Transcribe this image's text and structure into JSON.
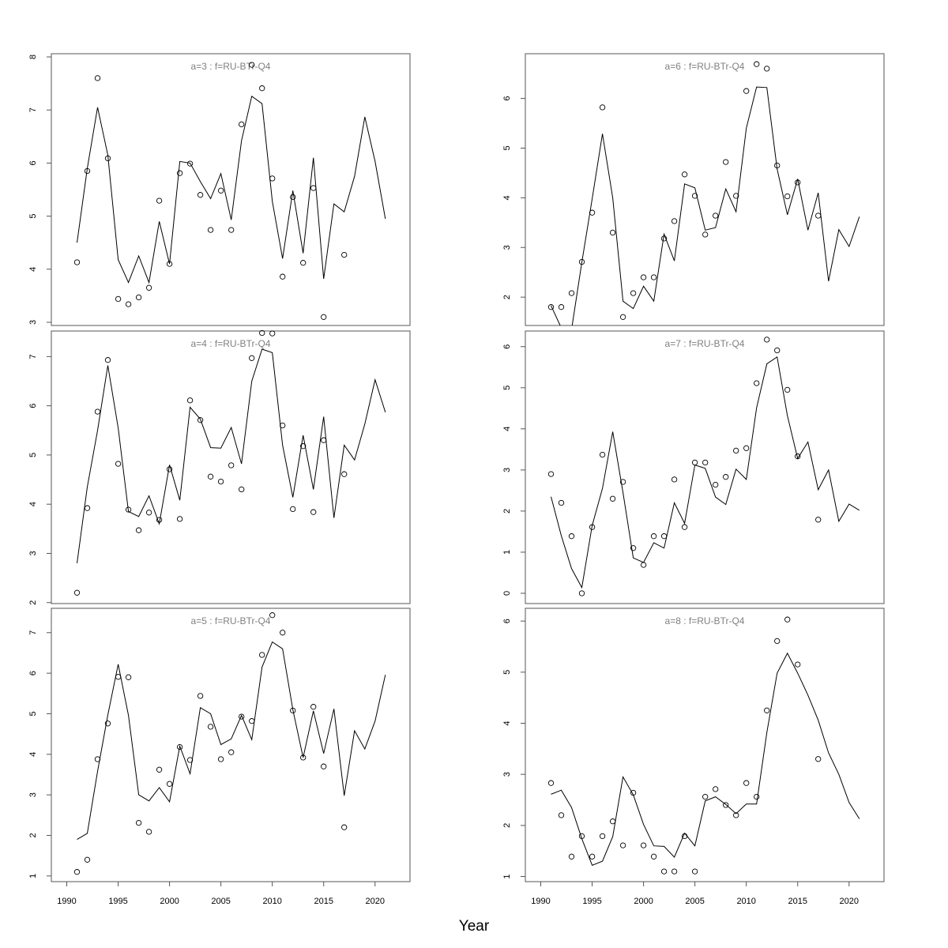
{
  "figure": {
    "xlabel": "Year"
  },
  "chart_data": [
    {
      "type": "line",
      "title": "a=3  :  f=RU-BTr-Q4",
      "ylim": [
        2.94,
        8.06
      ],
      "yticks": [
        3,
        4,
        5,
        6,
        7,
        8
      ],
      "xlim": [
        1988.5,
        2023.4
      ],
      "xticks": [],
      "fit": {
        "x": [
          1991,
          1992,
          1993,
          1994,
          1995,
          1996,
          1997,
          1998,
          1999,
          2000,
          2001,
          2002,
          2003,
          2004,
          2005,
          2006,
          2007,
          2008,
          2009,
          2010,
          2011,
          2012,
          2013,
          2014,
          2015,
          2016,
          2017,
          2018,
          2019,
          2020,
          2021
        ],
        "y": [
          4.5,
          5.9,
          7.05,
          6.15,
          4.18,
          3.75,
          4.25,
          3.75,
          4.9,
          4.1,
          6.03,
          6.0,
          5.65,
          5.33,
          5.8,
          4.93,
          6.42,
          7.26,
          7.12,
          5.28,
          4.2,
          5.48,
          4.3,
          6.1,
          3.82,
          5.23,
          5.08,
          5.75,
          6.87,
          6.03,
          4.95
        ]
      },
      "observed": {
        "x": [
          1991,
          1992,
          1993,
          1994,
          1995,
          1996,
          1997,
          1998,
          1999,
          2000,
          2001,
          2002,
          2003,
          2004,
          2005,
          2006,
          2007,
          2008,
          2009,
          2010,
          2011,
          2012,
          2013,
          2014,
          2015,
          2017
        ],
        "y": [
          4.13,
          5.85,
          7.6,
          6.09,
          3.44,
          3.34,
          3.47,
          3.65,
          5.29,
          4.1,
          5.81,
          5.99,
          5.4,
          4.74,
          5.48,
          4.74,
          6.73,
          7.85,
          7.41,
          5.71,
          3.86,
          5.36,
          4.12,
          5.53,
          3.1,
          4.27
        ]
      }
    },
    {
      "type": "line",
      "title": "a=4  :  f=RU-BTr-Q4",
      "ylim": [
        1.98,
        7.52
      ],
      "yticks": [
        2,
        3,
        4,
        5,
        6,
        7
      ],
      "xlim": [
        1988.5,
        2023.4
      ],
      "xticks": [],
      "fit": {
        "x": [
          1991,
          1992,
          1993,
          1994,
          1995,
          1996,
          1997,
          1998,
          1999,
          2000,
          2001,
          2002,
          2003,
          2004,
          2005,
          2006,
          2007,
          2008,
          2009,
          2010,
          2011,
          2012,
          2013,
          2014,
          2015,
          2016,
          2017,
          2018,
          2019,
          2020,
          2021
        ],
        "y": [
          2.8,
          4.35,
          5.5,
          6.82,
          5.55,
          3.85,
          3.75,
          4.17,
          3.6,
          4.8,
          4.08,
          5.97,
          5.73,
          5.15,
          5.14,
          5.56,
          4.82,
          6.5,
          7.15,
          7.08,
          5.2,
          4.14,
          5.4,
          4.3,
          5.78,
          3.72,
          5.2,
          4.9,
          5.63,
          6.53,
          5.87
        ]
      },
      "observed": {
        "x": [
          1991,
          1992,
          1993,
          1994,
          1995,
          1996,
          1997,
          1998,
          1999,
          2000,
          2001,
          2002,
          2003,
          2004,
          2005,
          2006,
          2007,
          2008,
          2009,
          2010,
          2011,
          2012,
          2013,
          2014,
          2015,
          2017
        ],
        "y": [
          2.2,
          3.92,
          5.88,
          6.93,
          4.82,
          3.89,
          3.47,
          3.83,
          3.68,
          4.71,
          3.7,
          6.11,
          5.71,
          4.56,
          4.46,
          4.79,
          4.3,
          6.97,
          7.48,
          7.47,
          5.6,
          3.9,
          5.18,
          3.84,
          5.3,
          4.61
        ]
      }
    },
    {
      "type": "line",
      "title": "a=5  :  f=RU-BTr-Q4",
      "ylim": [
        0.86,
        7.6
      ],
      "yticks": [
        1,
        2,
        3,
        4,
        5,
        6,
        7
      ],
      "xlim": [
        1988.5,
        2023.4
      ],
      "xticks": [
        1990,
        1995,
        2000,
        2005,
        2010,
        2015,
        2020
      ],
      "fit": {
        "x": [
          1991,
          1992,
          1993,
          1994,
          1995,
          1996,
          1997,
          1998,
          1999,
          2000,
          2001,
          2002,
          2003,
          2004,
          2005,
          2006,
          2007,
          2008,
          2009,
          2010,
          2011,
          2012,
          2013,
          2014,
          2015,
          2016,
          2017,
          2018,
          2019,
          2020,
          2021
        ],
        "y": [
          1.9,
          2.05,
          3.58,
          4.97,
          6.22,
          4.96,
          3.0,
          2.85,
          3.18,
          2.83,
          4.2,
          3.52,
          5.15,
          5.0,
          4.24,
          4.38,
          4.96,
          4.36,
          6.15,
          6.77,
          6.6,
          5.1,
          3.92,
          5.07,
          4.02,
          5.12,
          2.98,
          4.58,
          4.13,
          4.82,
          5.96
        ]
      },
      "observed": {
        "x": [
          1991,
          1992,
          1993,
          1994,
          1995,
          1996,
          1997,
          1998,
          1999,
          2000,
          2001,
          2002,
          2003,
          2004,
          2005,
          2006,
          2007,
          2008,
          2009,
          2010,
          2011,
          2012,
          2013,
          2014,
          2015,
          2017
        ],
        "y": [
          1.1,
          1.4,
          3.88,
          4.76,
          5.91,
          5.9,
          2.31,
          2.09,
          3.62,
          3.27,
          4.18,
          3.86,
          5.44,
          4.68,
          3.88,
          4.05,
          4.93,
          4.82,
          6.45,
          7.43,
          7.0,
          5.08,
          3.92,
          5.17,
          3.7,
          2.2
        ]
      }
    },
    {
      "type": "line",
      "title": "a=6  :  f=RU-BTr-Q4",
      "ylim": [
        1.43,
        6.9
      ],
      "yticks": [
        2,
        3,
        4,
        5,
        6
      ],
      "xlim": [
        1988.5,
        2023.4
      ],
      "xticks": [],
      "fit": {
        "x": [
          1991,
          1992,
          1993,
          1994,
          1995,
          1996,
          1997,
          1998,
          1999,
          2000,
          2001,
          2002,
          2003,
          2004,
          2005,
          2006,
          2007,
          2008,
          2009,
          2010,
          2011,
          2012,
          2013,
          2014,
          2015,
          2016,
          2017,
          2018,
          2019,
          2020,
          2021
        ],
        "y": [
          1.83,
          1.38,
          1.35,
          2.7,
          3.98,
          5.29,
          4.0,
          1.92,
          1.77,
          2.22,
          1.92,
          3.27,
          2.73,
          4.28,
          4.2,
          3.35,
          3.4,
          4.18,
          3.72,
          5.4,
          6.23,
          6.22,
          4.58,
          3.66,
          4.38,
          3.35,
          4.1,
          2.32,
          3.36,
          3.02,
          3.62
        ]
      },
      "observed": {
        "x": [
          1991,
          1992,
          1993,
          1994,
          1995,
          1996,
          1997,
          1998,
          1999,
          2000,
          2001,
          2002,
          2003,
          2004,
          2005,
          2006,
          2007,
          2008,
          2009,
          2010,
          2011,
          2012,
          2013,
          2014,
          2015,
          2017
        ],
        "y": [
          1.8,
          1.8,
          2.08,
          2.71,
          3.7,
          5.82,
          3.3,
          1.6,
          2.08,
          2.4,
          2.4,
          3.18,
          3.53,
          4.47,
          4.04,
          3.26,
          3.64,
          4.72,
          4.04,
          6.15,
          6.69,
          6.6,
          4.65,
          4.03,
          4.31,
          3.64
        ]
      }
    },
    {
      "type": "line",
      "title": "a=7  :  f=RU-BTr-Q4",
      "ylim": [
        -0.25,
        6.38
      ],
      "yticks": [
        0,
        1,
        2,
        3,
        4,
        5,
        6
      ],
      "xlim": [
        1988.5,
        2023.4
      ],
      "xticks": [],
      "fit": {
        "x": [
          1991,
          1992,
          1993,
          1994,
          1995,
          1996,
          1997,
          1998,
          1999,
          2000,
          2001,
          2002,
          2003,
          2004,
          2005,
          2006,
          2007,
          2008,
          2009,
          2010,
          2011,
          2012,
          2013,
          2014,
          2015,
          2016,
          2017,
          2018,
          2019,
          2020,
          2021
        ],
        "y": [
          2.35,
          1.4,
          0.6,
          0.14,
          1.65,
          2.55,
          3.93,
          2.45,
          0.86,
          0.75,
          1.23,
          1.1,
          2.2,
          1.7,
          3.12,
          3.04,
          2.34,
          2.16,
          3.02,
          2.77,
          4.51,
          5.58,
          5.75,
          4.32,
          3.28,
          3.68,
          2.52,
          3.0,
          1.75,
          2.17,
          2.02
        ]
      },
      "observed": {
        "x": [
          1991,
          1992,
          1993,
          1994,
          1995,
          1996,
          1997,
          1998,
          1999,
          2000,
          2001,
          2002,
          2003,
          2004,
          2005,
          2006,
          2007,
          2008,
          2009,
          2010,
          2011,
          2012,
          2013,
          2014,
          2015,
          2017
        ],
        "y": [
          2.9,
          2.2,
          1.39,
          0.0,
          1.61,
          3.37,
          2.3,
          2.71,
          1.1,
          0.69,
          1.39,
          1.39,
          2.77,
          1.61,
          3.18,
          3.18,
          2.64,
          2.83,
          3.47,
          3.53,
          5.11,
          6.17,
          5.91,
          4.95,
          3.33,
          1.79
        ]
      }
    },
    {
      "type": "line",
      "title": "a=8  :  f=RU-BTr-Q4",
      "ylim": [
        0.9,
        6.25
      ],
      "yticks": [
        1,
        2,
        3,
        4,
        5,
        6
      ],
      "xlim": [
        1988.5,
        2023.4
      ],
      "xticks": [
        1990,
        1995,
        2000,
        2005,
        2010,
        2015,
        2020
      ],
      "fit": {
        "x": [
          1991,
          1992,
          1993,
          1994,
          1995,
          1996,
          1997,
          1998,
          1999,
          2000,
          2001,
          2002,
          2003,
          2004,
          2005,
          2006,
          2007,
          2008,
          2009,
          2010,
          2011,
          2012,
          2013,
          2014,
          2015,
          2016,
          2017,
          2018,
          2019,
          2020,
          2021
        ],
        "y": [
          2.61,
          2.69,
          2.35,
          1.74,
          1.22,
          1.3,
          1.78,
          2.95,
          2.6,
          2.02,
          1.6,
          1.59,
          1.38,
          1.85,
          1.6,
          2.48,
          2.56,
          2.41,
          2.23,
          2.42,
          2.42,
          3.82,
          4.98,
          5.37,
          4.98,
          4.55,
          4.06,
          3.42,
          3.0,
          2.45,
          2.13
        ]
      },
      "observed": {
        "x": [
          1991,
          1992,
          1993,
          1994,
          1995,
          1996,
          1997,
          1998,
          1999,
          2000,
          2001,
          2002,
          2003,
          2004,
          2005,
          2006,
          2007,
          2008,
          2009,
          2010,
          2011,
          2012,
          2013,
          2014,
          2015,
          2017
        ],
        "y": [
          2.83,
          2.2,
          1.39,
          1.79,
          1.39,
          1.79,
          2.08,
          1.61,
          2.64,
          1.61,
          1.39,
          1.1,
          1.1,
          1.79,
          1.1,
          2.56,
          2.71,
          2.4,
          2.2,
          2.83,
          2.56,
          4.25,
          5.61,
          6.03,
          5.15,
          3.3
        ]
      }
    }
  ]
}
